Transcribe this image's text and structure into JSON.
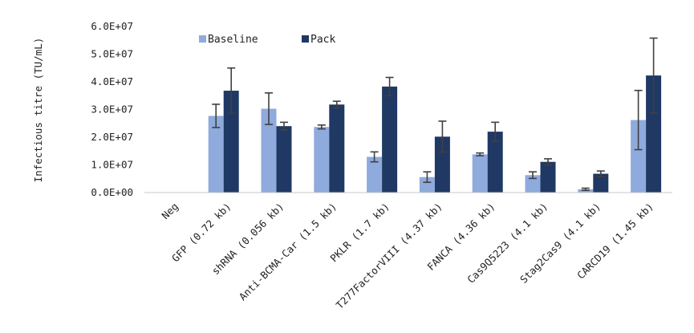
{
  "chart_data": {
    "type": "bar",
    "ylabel": "Infectious titre (TU/mL)",
    "xlabel": "",
    "ylim": [
      0,
      60000000
    ],
    "y_ticks": [
      {
        "value": 0,
        "label": "0.0E+00"
      },
      {
        "value": 10000000,
        "label": "1.0E+07"
      },
      {
        "value": 20000000,
        "label": "2.0E+07"
      },
      {
        "value": 30000000,
        "label": "3.0E+07"
      },
      {
        "value": 40000000,
        "label": "4.0E+07"
      },
      {
        "value": 50000000,
        "label": "5.0E+07"
      },
      {
        "value": 60000000,
        "label": "6.0E+07"
      }
    ],
    "categories": [
      "Neg",
      "GFP (0.72 kb)",
      "shRNA (0.056 kb)",
      "Anti-BCMA-Car (1.5 kb)",
      "PKLR (1.7 kb)",
      "T277FactorVIII (4.37 kb)",
      "FANCA (4.36 kb)",
      "Cas9Q5223 (4.1 kb)",
      "Stag2Cas9 (4.1 kb)",
      "CARCD19 (1.45 kb)"
    ],
    "series": [
      {
        "name": "Baseline",
        "color": "#8faadc",
        "values": [
          0,
          27700000,
          30300000,
          23700000,
          12900000,
          5600000,
          13800000,
          6300000,
          1200000,
          26200000
        ],
        "errors": [
          0,
          4200000,
          5700000,
          700000,
          1800000,
          1900000,
          500000,
          1200000,
          400000,
          10700000
        ]
      },
      {
        "name": "Pack",
        "color": "#203864",
        "values": [
          0,
          36800000,
          24000000,
          31800000,
          38300000,
          20200000,
          22000000,
          11100000,
          6800000,
          42300000
        ],
        "errors": [
          0,
          8200000,
          1400000,
          1200000,
          3300000,
          5600000,
          3400000,
          1100000,
          1000000,
          13500000
        ]
      }
    ],
    "legend": {
      "placement": "top-left"
    },
    "grid": false,
    "error_bar_color": "#404040"
  }
}
